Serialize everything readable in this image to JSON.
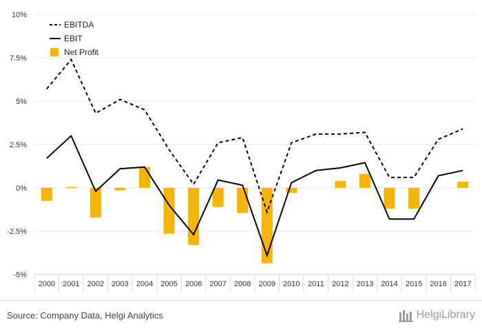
{
  "chart_data": {
    "type": "bar",
    "categories": [
      "2000",
      "2001",
      "2002",
      "2003",
      "2004",
      "2005",
      "2006",
      "2007",
      "2008",
      "2009",
      "2010",
      "2011",
      "2012",
      "2013",
      "2014",
      "2015",
      "2016",
      "2017"
    ],
    "y_ticks": [
      10,
      7.5,
      5,
      2.5,
      0,
      -2.5,
      -5
    ],
    "y_tick_labels": [
      "10%",
      "7.5%",
      "5%",
      "2.5%",
      "0%",
      "-2.5%",
      "-5%"
    ],
    "ylim": [
      -5,
      10
    ],
    "grid": true,
    "legend_position": "top-left",
    "series": [
      {
        "name": "EBITDA",
        "kind": "line",
        "style": "dashed",
        "color": "#000000",
        "values": [
          5.7,
          7.4,
          4.3,
          5.1,
          4.5,
          2.2,
          0.2,
          2.6,
          2.9,
          -1.4,
          2.6,
          3.1,
          3.1,
          3.2,
          0.6,
          0.6,
          2.8,
          3.4
        ]
      },
      {
        "name": "EBIT",
        "kind": "line",
        "style": "solid",
        "color": "#000000",
        "values": [
          1.7,
          3.0,
          -0.2,
          1.1,
          1.2,
          -1.0,
          -2.7,
          0.45,
          0.15,
          -3.9,
          0.3,
          1.0,
          1.15,
          1.45,
          -1.8,
          -1.8,
          0.7,
          1.0
        ]
      },
      {
        "name": "Net Profit",
        "kind": "bar",
        "color": "#f7b400",
        "values": [
          -0.75,
          0.05,
          -1.7,
          -0.15,
          1.2,
          -2.65,
          -3.3,
          -1.1,
          -1.45,
          -4.35,
          -0.3,
          0.0,
          0.4,
          0.8,
          -1.2,
          -1.2,
          0.0,
          0.35
        ]
      }
    ]
  },
  "footer": {
    "source": "Source: Company Data, Helgi Analytics",
    "logo_text": "HelgiLibrary"
  },
  "colors": {
    "accent": "#f7b400",
    "grid": "#e6e6e6"
  }
}
